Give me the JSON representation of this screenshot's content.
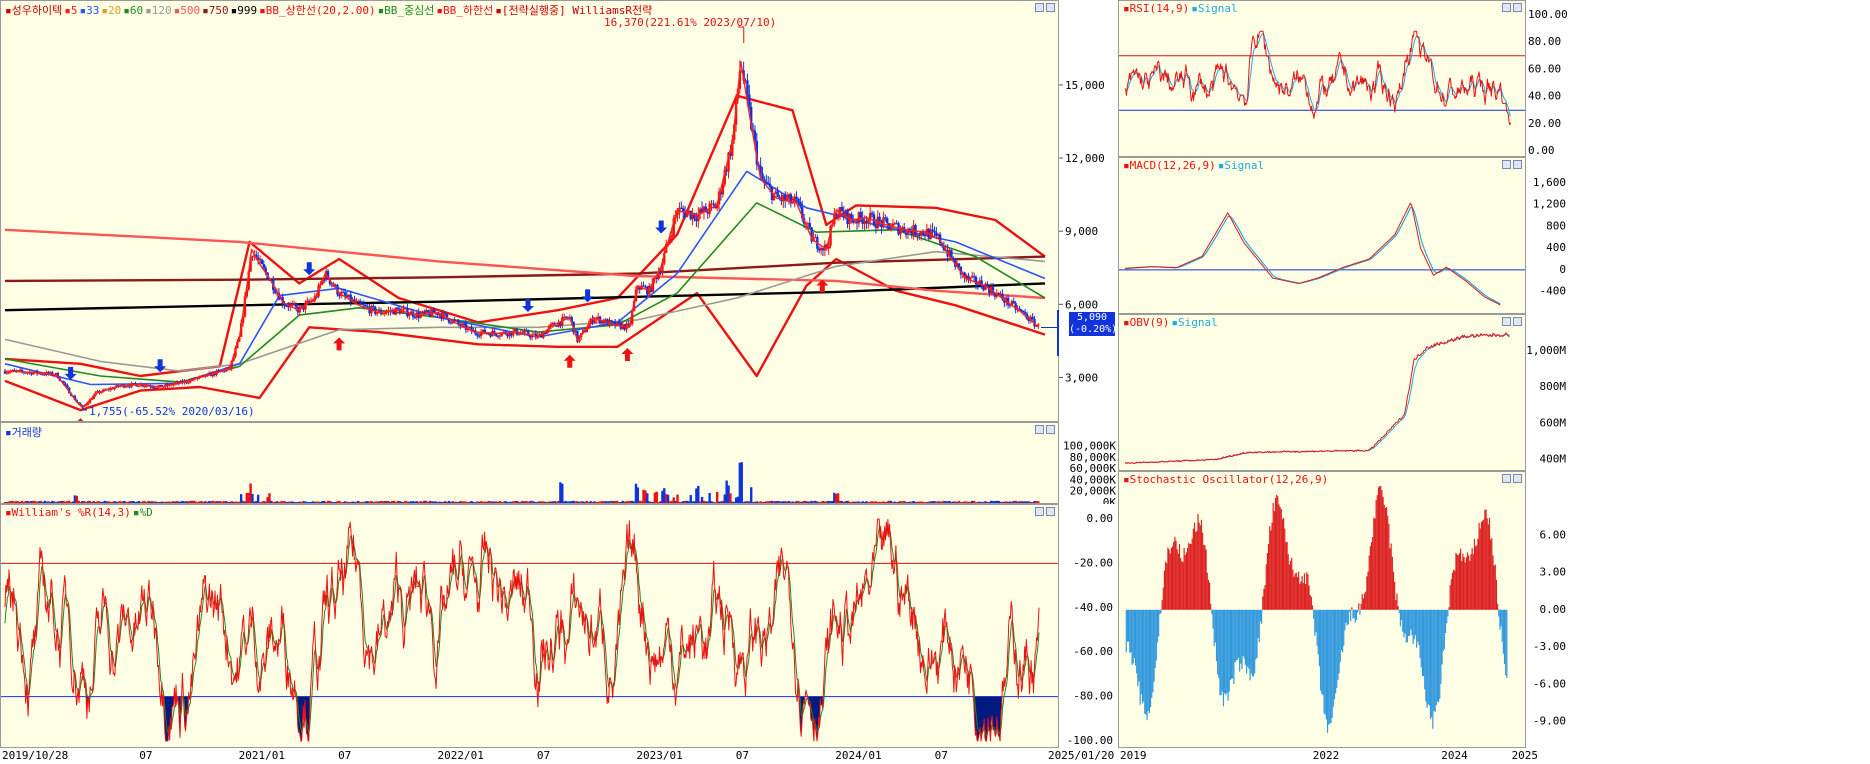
{
  "colors": {
    "panel_bg": "#ffffe6",
    "up": "#ee1111",
    "down": "#1133dd",
    "ma5": "#ff2020",
    "ma33": "#2a55ff",
    "ma20": "#d8a020",
    "ma60": "#228822",
    "ma120": "#999999",
    "ma500": "#ff5555",
    "ma750": "#8b1a1a",
    "ma999": "#000000",
    "bb": "#ee1111",
    "signal": "#22aadd"
  },
  "main_legend": [
    {
      "text": "성우하이텍",
      "color": "#cc0000"
    },
    {
      "text": "5",
      "color": "#ff2020"
    },
    {
      "text": "33",
      "color": "#2a55ff"
    },
    {
      "text": "20",
      "color": "#d8a020"
    },
    {
      "text": "60",
      "color": "#228822"
    },
    {
      "text": "120",
      "color": "#999999"
    },
    {
      "text": "500",
      "color": "#ff5555"
    },
    {
      "text": "750",
      "color": "#8b1a1a"
    },
    {
      "text": "999",
      "color": "#000000"
    },
    {
      "text": "BB_상한선(20,2.00)",
      "color": "#ee1111"
    },
    {
      "text": "BB_중심선",
      "color": "#228822"
    },
    {
      "text": "BB_하한선",
      "color": "#ee1111"
    },
    {
      "text": "[전략실행중] WilliamsR전략",
      "color": "#cc0000"
    }
  ],
  "volume_legend": [
    {
      "text": "거래량",
      "color": "#1133dd"
    }
  ],
  "williams_legend": [
    {
      "text": "William's %R(14,3)",
      "color": "#ee1111"
    },
    {
      "text": "%D",
      "color": "#228822"
    }
  ],
  "rsi_legend": [
    {
      "text": "RSI(14,9)",
      "color": "#ee1111"
    },
    {
      "text": "Signal",
      "color": "#22aadd"
    }
  ],
  "macd_legend": [
    {
      "text": "MACD(12,26,9)",
      "color": "#ee1111"
    },
    {
      "text": "Signal",
      "color": "#22aadd"
    }
  ],
  "obv_legend": [
    {
      "text": "OBV(9)",
      "color": "#ee1111"
    },
    {
      "text": "Signal",
      "color": "#22aadd"
    }
  ],
  "stoch_legend": [
    {
      "text": "Stochastic Oscillator(12,26,9)",
      "color": "#ee1111"
    }
  ],
  "annotations": {
    "high": "16,370(221.61% 2023/07/10)",
    "low": "1,755(-65.52% 2020/03/16)",
    "current_price": "5,090",
    "current_change": "(-0.20%)"
  },
  "main_x_ticks": [
    "2019/10/28",
    "07",
    "2021/01",
    "07",
    "2022/01",
    "07",
    "2023/01",
    "07",
    "2024/01",
    "07",
    "2025/01/20"
  ],
  "right_x_ticks": [
    "2019",
    "2022",
    "2024",
    "2025"
  ],
  "chart_data": [
    {
      "type": "candlestick",
      "title": "성우하이텍",
      "x_range": [
        "2019/10/28",
        "2025/01/20"
      ],
      "ylim": [
        1500,
        17500
      ],
      "y_ticks": [
        3000,
        6000,
        9000,
        12000,
        15000
      ],
      "y_tick_labels": [
        "3,000",
        "6,000",
        "9,000",
        "12,000",
        "15,000"
      ],
      "close": [
        [
          2019.82,
          3300
        ],
        [
          2019.95,
          3250
        ],
        [
          2020.08,
          3150
        ],
        [
          2020.18,
          2050
        ],
        [
          2020.21,
          1800
        ],
        [
          2020.28,
          2400
        ],
        [
          2020.4,
          2700
        ],
        [
          2020.5,
          2750
        ],
        [
          2020.6,
          2650
        ],
        [
          2020.72,
          2850
        ],
        [
          2020.85,
          3150
        ],
        [
          2020.95,
          3400
        ],
        [
          2021.0,
          4700
        ],
        [
          2021.04,
          7000
        ],
        [
          2021.06,
          8300
        ],
        [
          2021.1,
          7700
        ],
        [
          2021.15,
          7100
        ],
        [
          2021.22,
          6100
        ],
        [
          2021.3,
          5800
        ],
        [
          2021.38,
          6300
        ],
        [
          2021.43,
          7300
        ],
        [
          2021.5,
          6500
        ],
        [
          2021.6,
          6000
        ],
        [
          2021.7,
          5700
        ],
        [
          2021.8,
          5800
        ],
        [
          2021.9,
          5600
        ],
        [
          2022.0,
          5700
        ],
        [
          2022.08,
          5300
        ],
        [
          2022.18,
          4900
        ],
        [
          2022.3,
          4850
        ],
        [
          2022.4,
          4900
        ],
        [
          2022.5,
          4700
        ],
        [
          2022.58,
          5200
        ],
        [
          2022.66,
          5500
        ],
        [
          2022.7,
          4550
        ],
        [
          2022.78,
          5500
        ],
        [
          2022.88,
          5200
        ],
        [
          2022.96,
          5100
        ],
        [
          2023.0,
          6800
        ],
        [
          2023.06,
          6600
        ],
        [
          2023.12,
          7600
        ],
        [
          2023.2,
          9900
        ],
        [
          2023.3,
          9700
        ],
        [
          2023.4,
          10100
        ],
        [
          2023.48,
          12800
        ],
        [
          2023.52,
          16000
        ],
        [
          2023.56,
          14000
        ],
        [
          2023.62,
          11200
        ],
        [
          2023.7,
          10400
        ],
        [
          2023.8,
          10200
        ],
        [
          2023.88,
          8700
        ],
        [
          2023.95,
          8300
        ],
        [
          2024.0,
          9900
        ],
        [
          2024.08,
          9500
        ],
        [
          2024.15,
          9600
        ],
        [
          2024.25,
          9300
        ],
        [
          2024.35,
          9100
        ],
        [
          2024.45,
          9000
        ],
        [
          2024.52,
          8700
        ],
        [
          2024.58,
          7900
        ],
        [
          2024.65,
          7100
        ],
        [
          2024.75,
          6800
        ],
        [
          2024.85,
          6200
        ],
        [
          2024.95,
          5600
        ],
        [
          2025.02,
          5090
        ]
      ],
      "moving_averages": [
        {
          "name": "999",
          "values": [
            [
              2019.82,
              5800
            ],
            [
              2021.0,
              6000
            ],
            [
              2022.0,
              6150
            ],
            [
              2023.0,
              6350
            ],
            [
              2024.0,
              6550
            ],
            [
              2025.05,
              6900
            ]
          ]
        },
        {
          "name": "750",
          "values": [
            [
              2019.82,
              7000
            ],
            [
              2021.0,
              7050
            ],
            [
              2022.0,
              7150
            ],
            [
              2023.0,
              7300
            ],
            [
              2024.0,
              7750
            ],
            [
              2025.05,
              8000
            ]
          ]
        },
        {
          "name": "500",
          "values": [
            [
              2019.82,
              9100
            ],
            [
              2021.0,
              8600
            ],
            [
              2022.0,
              7800
            ],
            [
              2023.0,
              7200
            ],
            [
              2024.0,
              7000
            ],
            [
              2024.5,
              6600
            ],
            [
              2025.05,
              6300
            ]
          ]
        },
        {
          "name": "120",
          "values": [
            [
              2019.82,
              4600
            ],
            [
              2020.3,
              3700
            ],
            [
              2020.7,
              3300
            ],
            [
              2021.0,
              3600
            ],
            [
              2021.5,
              5000
            ],
            [
              2022.0,
              5100
            ],
            [
              2022.5,
              5100
            ],
            [
              2023.0,
              5400
            ],
            [
              2023.5,
              6300
            ],
            [
              2024.0,
              7600
            ],
            [
              2024.5,
              8200
            ],
            [
              2025.05,
              7800
            ]
          ]
        },
        {
          "name": "60",
          "values": [
            [
              2019.82,
              3800
            ],
            [
              2020.3,
              3100
            ],
            [
              2020.7,
              2850
            ],
            [
              2021.0,
              3500
            ],
            [
              2021.3,
              5600
            ],
            [
              2021.6,
              5900
            ],
            [
              2022.0,
              5500
            ],
            [
              2022.5,
              4900
            ],
            [
              2022.9,
              5200
            ],
            [
              2023.2,
              6500
            ],
            [
              2023.6,
              10200
            ],
            [
              2023.9,
              9000
            ],
            [
              2024.3,
              9100
            ],
            [
              2024.7,
              8000
            ],
            [
              2025.05,
              6300
            ]
          ]
        },
        {
          "name": "33",
          "values": [
            [
              2019.82,
              3600
            ],
            [
              2020.25,
              2750
            ],
            [
              2020.7,
              2800
            ],
            [
              2021.0,
              3600
            ],
            [
              2021.2,
              6400
            ],
            [
              2021.5,
              6700
            ],
            [
              2022.0,
              5500
            ],
            [
              2022.5,
              4700
            ],
            [
              2022.9,
              5300
            ],
            [
              2023.2,
              7300
            ],
            [
              2023.55,
              11500
            ],
            [
              2023.85,
              10000
            ],
            [
              2024.2,
              9300
            ],
            [
              2024.6,
              8600
            ],
            [
              2025.05,
              7100
            ]
          ]
        }
      ],
      "bollinger_upper": [
        [
          2019.82,
          3800
        ],
        [
          2020.2,
          3600
        ],
        [
          2020.5,
          3100
        ],
        [
          2020.9,
          3500
        ],
        [
          2021.05,
          8600
        ],
        [
          2021.3,
          6900
        ],
        [
          2021.5,
          7900
        ],
        [
          2021.8,
          6300
        ],
        [
          2022.2,
          5300
        ],
        [
          2022.6,
          5800
        ],
        [
          2022.9,
          6300
        ],
        [
          2023.2,
          8900
        ],
        [
          2023.5,
          14600
        ],
        [
          2023.78,
          14000
        ],
        [
          2023.95,
          9300
        ],
        [
          2024.1,
          10100
        ],
        [
          2024.5,
          10000
        ],
        [
          2024.8,
          9500
        ],
        [
          2025.05,
          8000
        ]
      ],
      "bollinger_lower": [
        [
          2019.82,
          2900
        ],
        [
          2020.2,
          1700
        ],
        [
          2020.5,
          2500
        ],
        [
          2020.8,
          2650
        ],
        [
          2021.1,
          2200
        ],
        [
          2021.35,
          5100
        ],
        [
          2021.7,
          4900
        ],
        [
          2022.2,
          4400
        ],
        [
          2022.6,
          4300
        ],
        [
          2022.9,
          4300
        ],
        [
          2023.3,
          6500
        ],
        [
          2023.6,
          3100
        ],
        [
          2023.85,
          6800
        ],
        [
          2024.0,
          7900
        ],
        [
          2024.3,
          6600
        ],
        [
          2024.6,
          6000
        ],
        [
          2025.05,
          4800
        ]
      ],
      "buy_signals": [
        2020.2,
        2021.5,
        2022.66,
        2022.95,
        2023.93
      ],
      "sell_signals": [
        2020.15,
        2020.6,
        2021.35,
        2022.45,
        2022.75,
        2023.12
      ]
    },
    {
      "type": "bar",
      "title": "거래량",
      "y_ticks": [
        0,
        20000,
        40000,
        60000,
        80000,
        100000
      ],
      "y_tick_labels": [
        "0K",
        "20,000K",
        "40,000K",
        "60,000K",
        "80,000K",
        "100,000K"
      ],
      "spikes": [
        [
          2020.18,
          14000
        ],
        [
          2021.04,
          24000
        ],
        [
          2021.06,
          36000
        ],
        [
          2022.62,
          45000
        ],
        [
          2023.0,
          37000
        ],
        [
          2023.15,
          52000
        ],
        [
          2023.3,
          35000
        ],
        [
          2023.45,
          40000
        ],
        [
          2023.52,
          78000
        ],
        [
          2024.0,
          20000
        ]
      ]
    },
    {
      "type": "line",
      "title": "William's %R(14,3)",
      "ylim": [
        -100,
        0
      ],
      "y_ticks": [
        0,
        -20,
        -40,
        -60,
        -80,
        -100
      ],
      "y_tick_labels": [
        "0.00",
        "-20.00",
        "-40.00",
        "-60.00",
        "-80.00",
        "-100.00"
      ],
      "reference_lines": [
        -20,
        -80
      ]
    },
    {
      "type": "line",
      "title": "RSI(14,9)",
      "ylim": [
        0,
        100
      ],
      "y_ticks": [
        0,
        20,
        40,
        60,
        80,
        100
      ],
      "y_tick_labels": [
        "0.00",
        "20.00",
        "40.00",
        "60.00",
        "80.00",
        "100.00"
      ],
      "reference_lines": [
        30,
        70
      ]
    },
    {
      "type": "line",
      "title": "MACD(12,26,9)",
      "ylim": [
        -700,
        1800
      ],
      "y_ticks": [
        -400,
        0,
        400,
        800,
        1200,
        1600
      ],
      "y_tick_labels": [
        "-400",
        "0",
        "400",
        "800",
        "1,200",
        "1,600"
      ],
      "macd": [
        [
          2019.0,
          30
        ],
        [
          2019.4,
          60
        ],
        [
          2019.8,
          40
        ],
        [
          2020.2,
          250
        ],
        [
          2020.6,
          1050
        ],
        [
          2020.85,
          500
        ],
        [
          2021.3,
          -150
        ],
        [
          2021.7,
          -250
        ],
        [
          2022.0,
          -150
        ],
        [
          2022.4,
          50
        ],
        [
          2022.8,
          200
        ],
        [
          2023.2,
          650
        ],
        [
          2023.45,
          1250
        ],
        [
          2023.6,
          400
        ],
        [
          2023.8,
          -100
        ],
        [
          2024.0,
          50
        ],
        [
          2024.3,
          -200
        ],
        [
          2024.6,
          -500
        ],
        [
          2024.85,
          -650
        ]
      ]
    },
    {
      "type": "line",
      "title": "OBV(9)",
      "y_ticks": [
        400000,
        600000,
        800000,
        1000000
      ],
      "y_tick_labels": [
        "400M",
        "600M",
        "800M",
        "1,000M"
      ]
    },
    {
      "type": "bar",
      "title": "Stochastic Oscillator(12,26,9)",
      "ylim": [
        -10,
        9
      ],
      "y_ticks": [
        -9,
        -6,
        -3,
        0,
        3,
        6
      ],
      "y_tick_labels": [
        "-9.00",
        "-6.00",
        "-3.00",
        "0.00",
        "3.00",
        "6.00"
      ]
    }
  ]
}
